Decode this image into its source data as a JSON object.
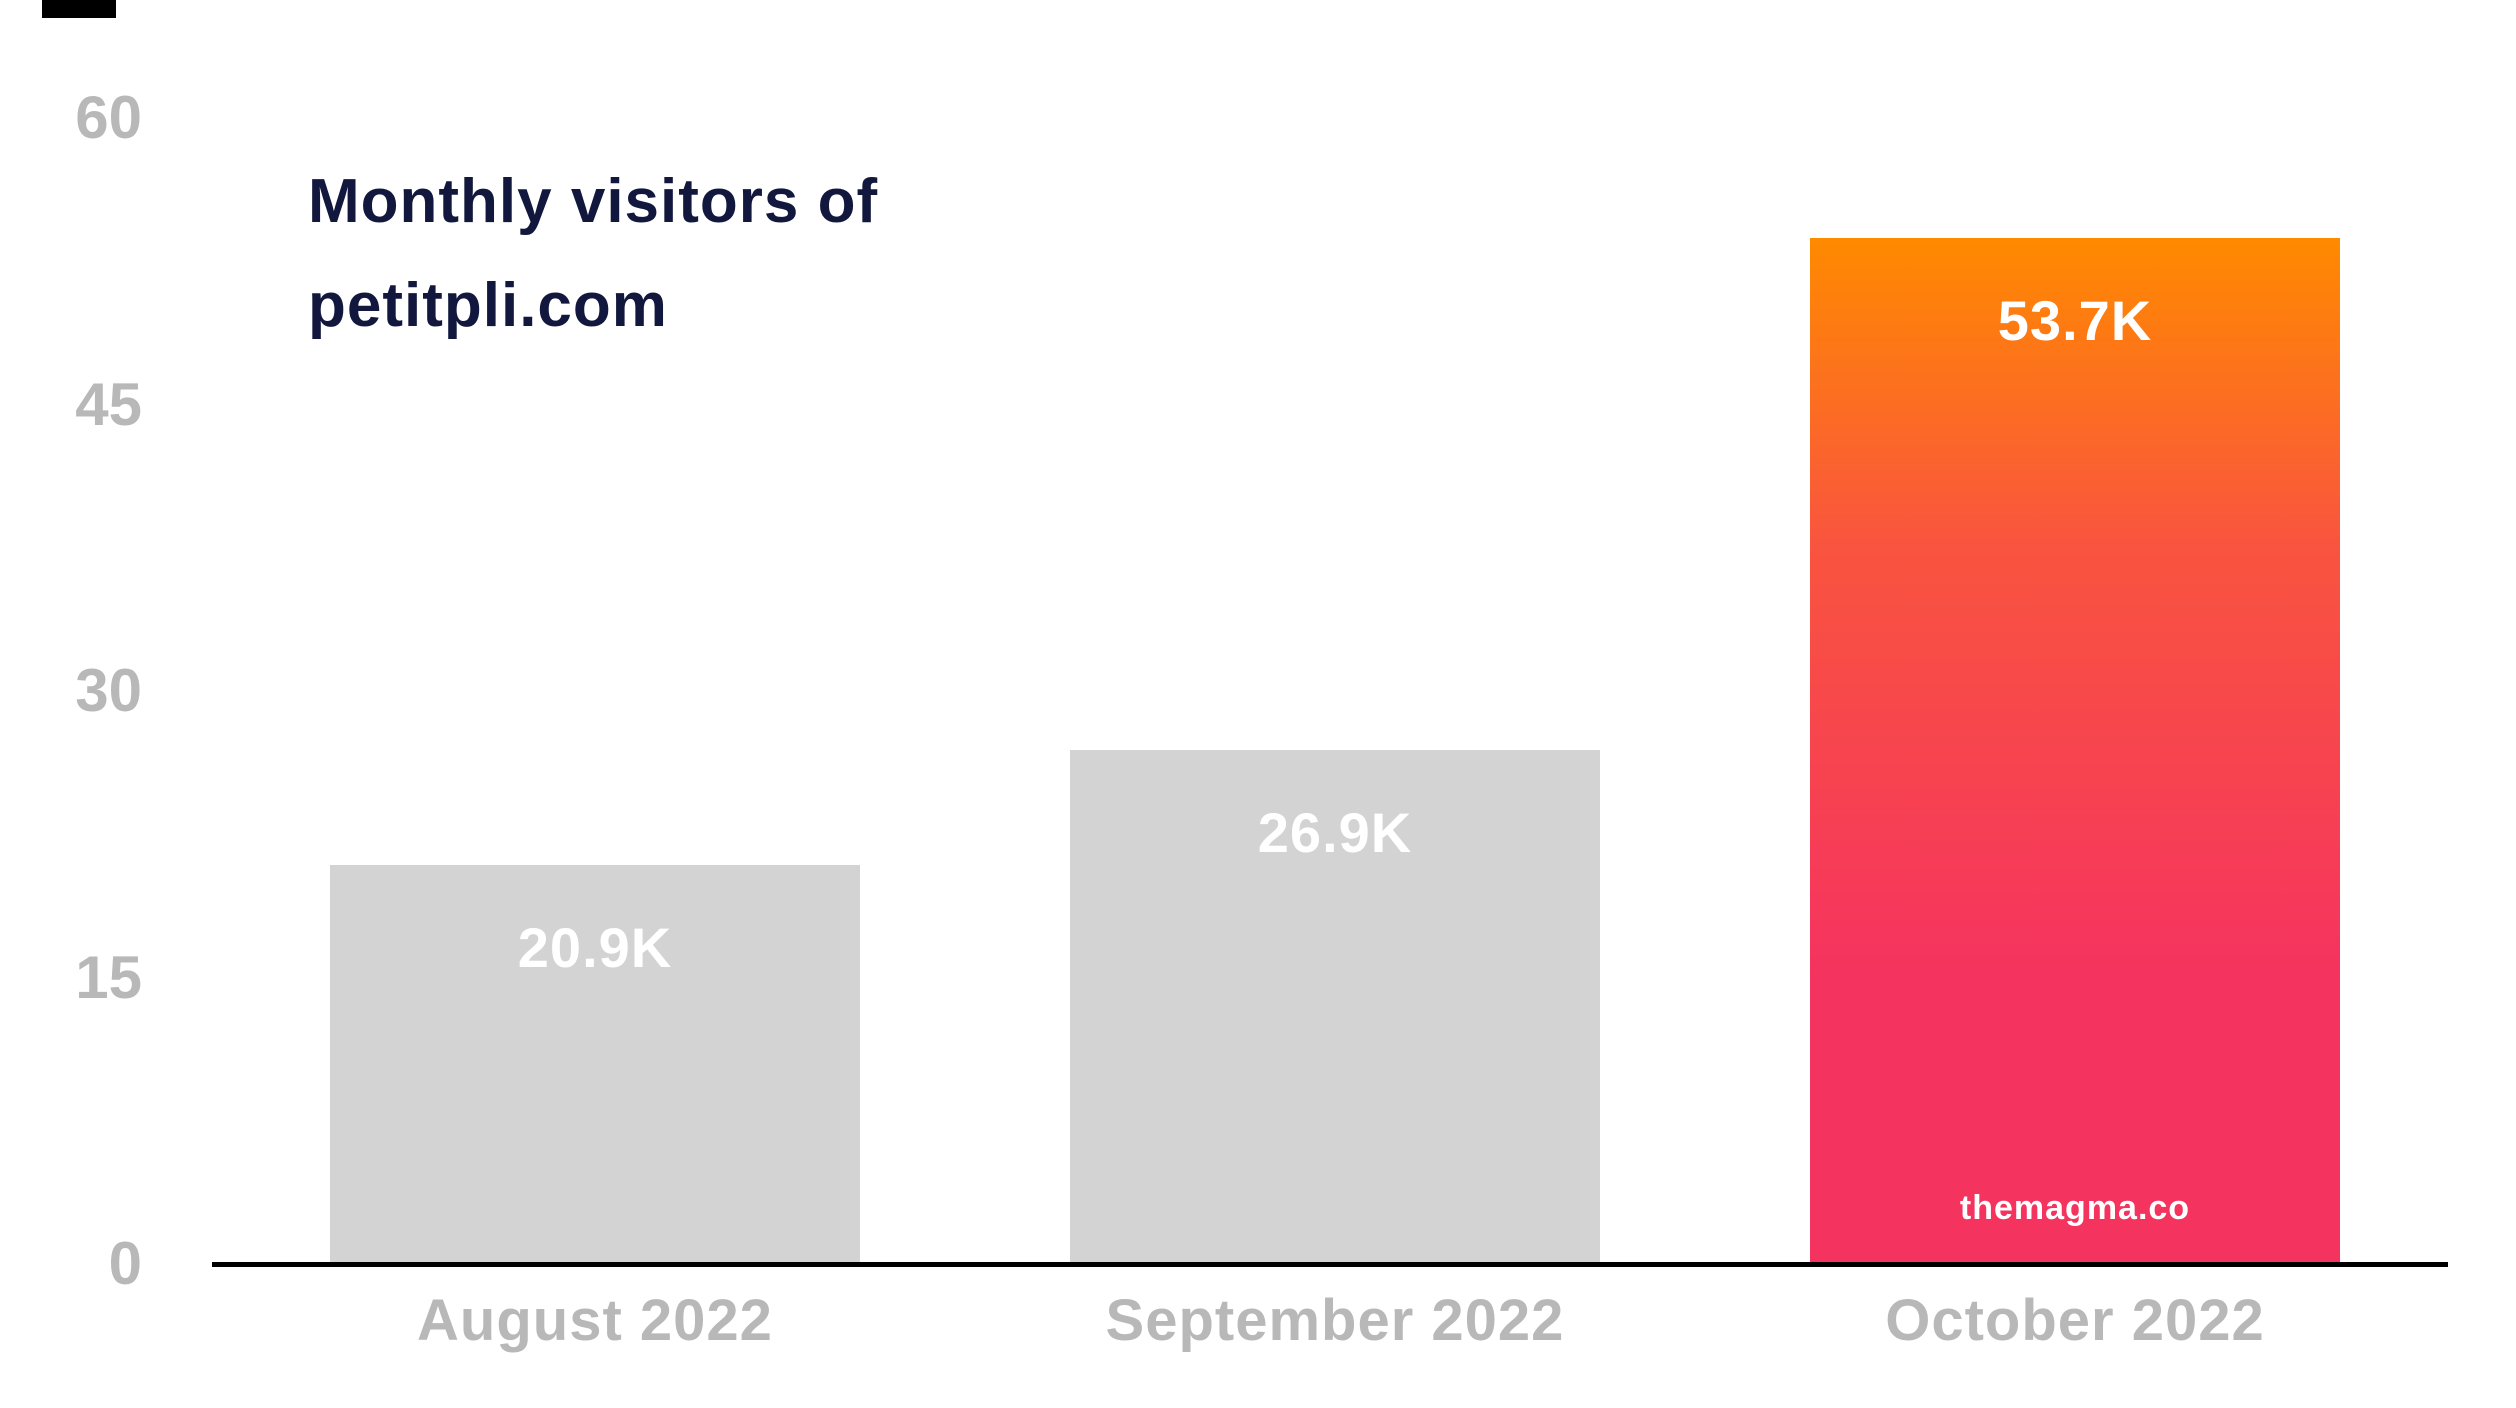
{
  "title": "Monthly visitors of\npetitpli.com",
  "watermark": "themagma.co",
  "colors": {
    "title": "#11173d",
    "axis_label": "#b8b8b8",
    "bar_default": "#d3d3d3",
    "bar_highlight_top": "#ff8a00",
    "bar_highlight_bottom": "#f5335f",
    "value_label": "#ffffff",
    "baseline": "#000000"
  },
  "chart_data": {
    "type": "bar",
    "title": "Monthly visitors of petitpli.com",
    "categories": [
      "August 2022",
      "September 2022",
      "October 2022"
    ],
    "values": [
      20.9,
      26.9,
      53.7
    ],
    "value_labels": [
      "20.9K",
      "26.9K",
      "53.7K"
    ],
    "xlabel": "",
    "ylabel": "",
    "ylim": [
      0,
      60
    ],
    "yticks": [
      0,
      15,
      30,
      45,
      60
    ],
    "grid": false,
    "legend": false,
    "highlight_index": 2,
    "annotations": [
      "themagma.co"
    ]
  }
}
